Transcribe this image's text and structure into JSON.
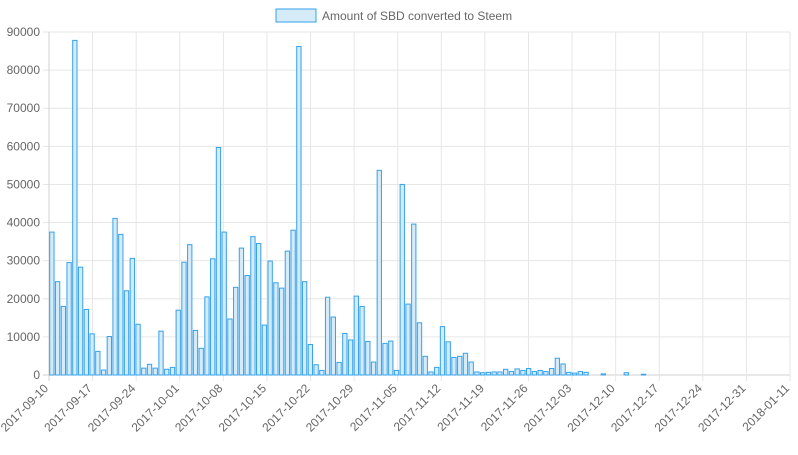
{
  "chart_data": {
    "type": "bar",
    "legend": {
      "label": "Amount of SBD converted to Steem",
      "position": "top"
    },
    "colors": {
      "bar_fill": "#d6ebf8",
      "bar_stroke": "#36a2eb",
      "grid": "#e6e6e6",
      "text": "#666666"
    },
    "ylim": [
      0,
      90000
    ],
    "y_ticks": [
      0,
      10000,
      20000,
      30000,
      40000,
      50000,
      60000,
      70000,
      80000,
      90000
    ],
    "x_ticks": [
      "2017-09-10",
      "2017-09-17",
      "2017-09-24",
      "2017-10-01",
      "2017-10-08",
      "2017-10-15",
      "2017-10-22",
      "2017-10-29",
      "2017-11-05",
      "2017-11-12",
      "2017-11-19",
      "2017-11-26",
      "2017-12-03",
      "2017-12-10",
      "2017-12-17",
      "2017-12-24",
      "2017-12-31",
      "2018-01-11"
    ],
    "grid": true,
    "series": [
      {
        "name": "Amount of SBD converted to Steem",
        "values": [
          37500,
          24500,
          18000,
          29500,
          87800,
          28300,
          17200,
          10800,
          6200,
          1300,
          10100,
          41100,
          36900,
          22100,
          30600,
          13300,
          1800,
          2800,
          1800,
          11500,
          1500,
          2000,
          17000,
          29600,
          34200,
          11700,
          7000,
          20500,
          30500,
          59700,
          37500,
          14700,
          23000,
          33300,
          26100,
          36300,
          34500,
          13100,
          29900,
          24200,
          22800,
          32500,
          38000,
          86200,
          24500,
          8000,
          2700,
          1200,
          20400,
          15200,
          3300,
          10900,
          9200,
          20700,
          18000,
          8800,
          3400,
          53700,
          8300,
          8900,
          1200,
          50000,
          18600,
          39600,
          13700,
          4900,
          800,
          2000,
          12700,
          8700,
          4600,
          4900,
          5700,
          3400,
          800,
          600,
          700,
          800,
          800,
          1500,
          900,
          1600,
          1200,
          1700,
          900,
          1200,
          900,
          1700,
          4400,
          2900,
          700,
          500,
          900,
          700,
          0,
          0,
          300,
          0,
          0,
          0,
          600,
          0,
          0,
          200,
          0,
          0,
          0,
          0,
          0,
          0,
          0,
          0,
          0,
          0,
          0,
          0,
          0,
          0,
          0,
          0,
          0,
          0,
          0,
          0,
          0,
          0,
          0,
          0,
          0
        ]
      }
    ]
  }
}
